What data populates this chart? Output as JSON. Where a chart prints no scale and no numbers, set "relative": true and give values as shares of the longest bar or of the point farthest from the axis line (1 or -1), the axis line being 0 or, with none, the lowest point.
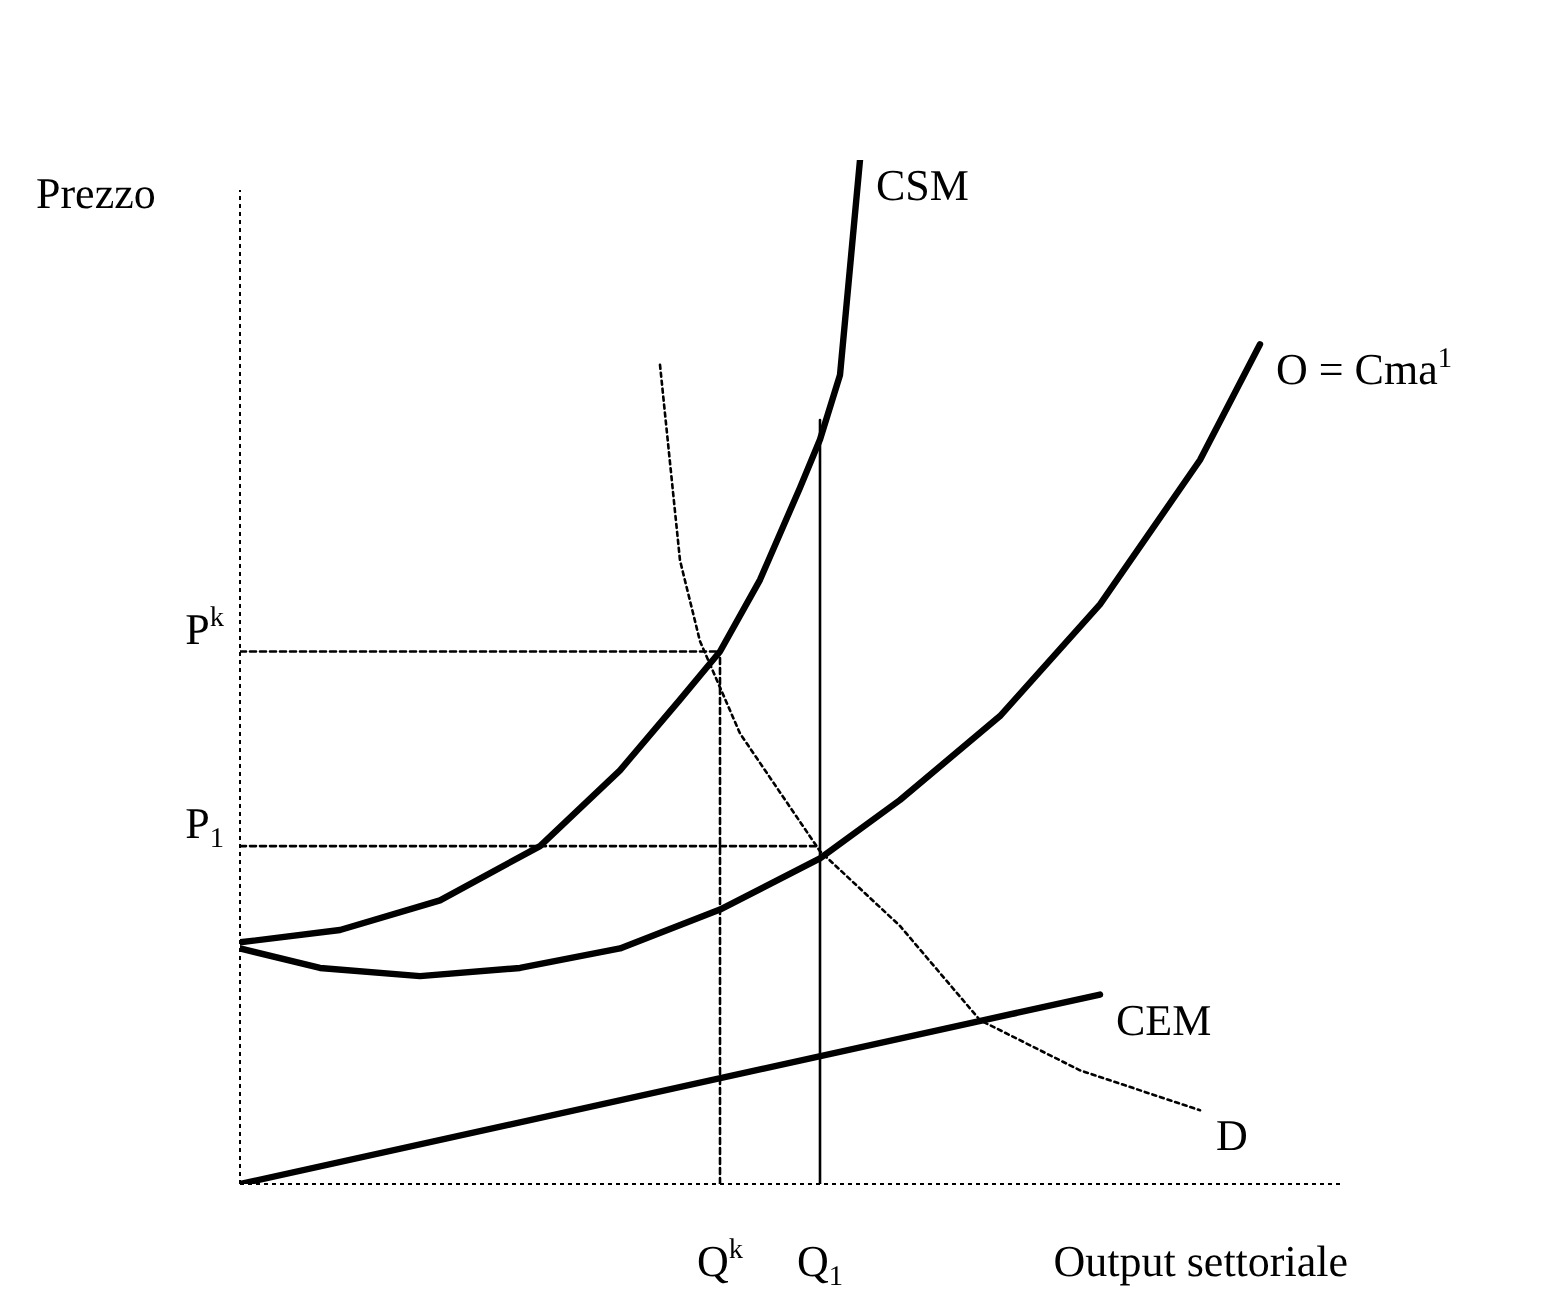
{
  "chart_data": {
    "type": "line",
    "relative": true,
    "xlabel": "Output settoriale",
    "ylabel": "Prezzo",
    "categories": [
      null,
      null,
      null,
      null,
      null,
      null,
      null,
      null,
      null,
      null,
      null,
      null,
      null,
      null,
      null,
      null,
      null,
      null,
      null,
      null,
      null,
      null,
      null,
      null,
      "Q$^{k}$",
      null,
      null,
      null,
      null,
      "Q$_{1}$",
      null,
      null,
      null,
      null,
      null,
      null,
      null,
      null,
      null,
      null,
      null,
      null,
      null,
      null,
      null,
      null,
      null,
      null,
      null,
      null,
      null,
      null,
      null,
      null,
      null,
      null
    ],
    "line_style": "solid",
    "marker": "none",
    "legend": false,
    "grid": false,
    "series": [
      {
        "name": "CSM",
        "color": "#000000",
        "values": [
          0.236,
          null,
          null,
          null,
          null,
          0.248,
          null,
          null,
          null,
          null,
          0.277,
          null,
          null,
          null,
          null,
          0.33,
          null,
          null,
          null,
          0.404,
          null,
          null,
          0.473,
          null,
          0.52,
          null,
          0.59,
          null,
          0.68,
          0.727,
          0.79,
          1,
          null,
          null,
          null,
          null,
          null,
          null,
          null,
          null,
          null,
          null,
          null,
          null,
          null,
          null,
          null,
          null,
          null,
          null,
          null,
          null,
          null,
          null,
          null,
          null
        ]
      },
      {
        "name": "O = Cma$^{1}$",
        "color": "#000000",
        "values": [
          0.23,
          null,
          null,
          null,
          0.211,
          null,
          null,
          null,
          null,
          0.203,
          null,
          null,
          null,
          null,
          0.211,
          null,
          null,
          null,
          null,
          0.23,
          null,
          null,
          null,
          null,
          0.268,
          null,
          null,
          null,
          null,
          0.318,
          null,
          null,
          null,
          0.375,
          null,
          null,
          null,
          null,
          0.457,
          null,
          null,
          null,
          null,
          0.566,
          null,
          null,
          null,
          null,
          0.707,
          null,
          null,
          0.82,
          null,
          null,
          null,
          null
        ]
      },
      {
        "name": "CEM",
        "color": "#000000",
        "values": [
          0,
          null,
          null,
          null,
          null,
          null,
          null,
          null,
          null,
          null,
          null,
          null,
          null,
          null,
          null,
          null,
          null,
          null,
          null,
          null,
          null,
          null,
          null,
          null,
          null,
          null,
          null,
          null,
          null,
          null,
          null,
          null,
          null,
          null,
          null,
          null,
          null,
          null,
          null,
          null,
          null,
          null,
          null,
          0.185,
          null,
          null,
          null,
          null,
          null,
          null,
          null,
          null,
          null,
          null,
          null,
          null
        ]
      },
      {
        "name": "D",
        "color": "#000000",
        "line_style": "dotted",
        "values": [
          null,
          null,
          null,
          null,
          null,
          null,
          null,
          null,
          null,
          null,
          null,
          null,
          null,
          null,
          null,
          null,
          null,
          null,
          null,
          null,
          null,
          0.8,
          0.609,
          0.53,
          null,
          0.44,
          null,
          null,
          null,
          0.325,
          null,
          null,
          null,
          0.252,
          null,
          null,
          null,
          0.16,
          null,
          null,
          null,
          null,
          0.111,
          null,
          null,
          null,
          null,
          null,
          0.072,
          null,
          null,
          null,
          null,
          null,
          null,
          null
        ]
      },
      {
        "name": "P$^{k}$",
        "color": "#000000",
        "line_style": "dashed",
        "values": [
          0.52,
          null,
          null,
          null,
          null,
          null,
          null,
          null,
          null,
          null,
          null,
          null,
          null,
          null,
          null,
          null,
          null,
          null,
          null,
          null,
          null,
          null,
          null,
          null,
          0.52,
          null,
          null,
          null,
          null,
          null,
          null,
          null,
          null,
          null,
          null,
          null,
          null,
          null,
          null,
          null,
          null,
          null,
          null,
          null,
          null,
          null,
          null,
          null,
          null,
          null,
          null,
          null,
          null,
          null,
          null,
          null
        ]
      },
      {
        "name": "P$_{1}$",
        "color": "#000000",
        "line_style": "dashed",
        "values": [
          0.33,
          null,
          null,
          null,
          null,
          null,
          null,
          null,
          null,
          null,
          null,
          null,
          null,
          null,
          null,
          null,
          null,
          null,
          null,
          null,
          null,
          null,
          null,
          null,
          null,
          null,
          null,
          null,
          null,
          0.33,
          null,
          null,
          null,
          null,
          null,
          null,
          null,
          null,
          null,
          null,
          null,
          null,
          null,
          null,
          null,
          null,
          null,
          null,
          null,
          null,
          null,
          null,
          null,
          null,
          null,
          null
        ]
      },
      {
        "color": "#000000",
        "line_style": "dashed",
        "x": [
          "Q$^{k}$",
          "Q$^{k}$"
        ],
        "values": [
          0,
          0.52
        ]
      },
      {
        "color": "#000000",
        "x": [
          "Q$_{1}$",
          "Q$_{1}$"
        ],
        "values": [
          0,
          0.746
        ]
      }
    ]
  }
}
